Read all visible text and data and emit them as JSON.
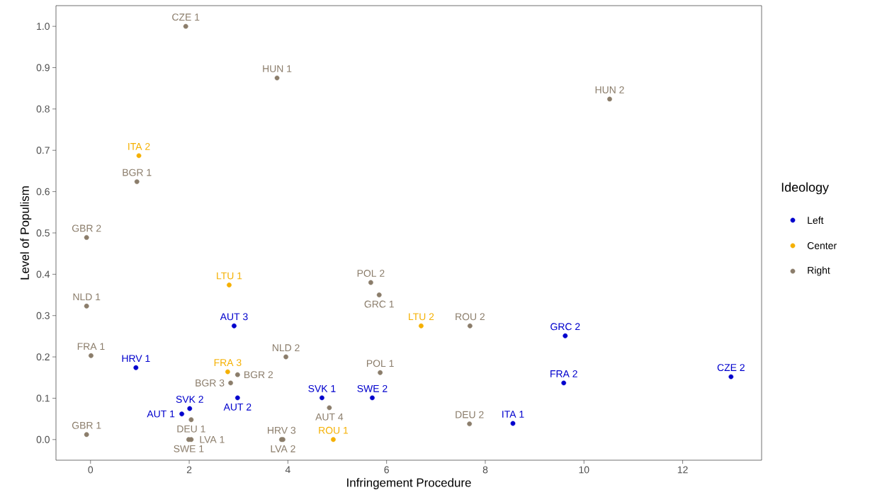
{
  "chart_data": {
    "type": "scatter",
    "xlabel": "Infringement Procedure",
    "ylabel": "Level of Populism",
    "legend_title": "Ideology",
    "legend": "right",
    "marker": "circle",
    "grid": false,
    "xlim": [
      -0.7,
      13.6
    ],
    "ylim": [
      -0.05,
      1.05
    ],
    "xticks": [
      0,
      2,
      4,
      6,
      8,
      10,
      12
    ],
    "yticks": [
      {
        "value": 0,
        "label": "0.0"
      },
      {
        "value": 0.1,
        "label": "0.1"
      },
      {
        "value": 0.2,
        "label": "0.2"
      },
      {
        "value": 0.3,
        "label": "0.3"
      },
      {
        "value": 0.4,
        "label": "0.4"
      },
      {
        "value": 0.5,
        "label": "0.5"
      },
      {
        "value": 0.6,
        "label": "0.6"
      },
      {
        "value": 0.7,
        "label": "0.7"
      },
      {
        "value": 0.8,
        "label": "0.8"
      },
      {
        "value": 0.9,
        "label": "0.9"
      },
      {
        "value": 1.0,
        "label": "1.0"
      }
    ],
    "series": [
      {
        "name": "Left",
        "color": "#0000cd",
        "x": [
          2.91,
          9.62,
          0.92,
          12.98,
          9.59,
          2.98,
          4.69,
          5.71,
          2.01,
          1.85,
          8.56
        ],
        "values": [
          0.275,
          0.251,
          0.174,
          0.152,
          0.137,
          0.101,
          0.101,
          0.101,
          0.075,
          0.062,
          0.039
        ],
        "value_labels": [
          "AUT 3",
          "GRC 2",
          "HRV 1",
          "CZE 2",
          "FRA 2",
          "AUT 2",
          "SVK 1",
          "SWE 2",
          "SVK 2",
          "AUT 1",
          "ITA 1"
        ]
      },
      {
        "name": "Center",
        "color": "#f5b000",
        "x": [
          0.98,
          2.81,
          6.7,
          4.92,
          2.78
        ],
        "values": [
          0.687,
          0.374,
          0.275,
          0.0,
          0.164
        ],
        "value_labels": [
          "ITA 2",
          "LTU 1",
          "LTU 2",
          "ROU 1",
          "FRA 3"
        ]
      },
      {
        "name": "Right",
        "color": "#8b7d6b",
        "x": [
          1.93,
          3.78,
          10.52,
          0.94,
          -0.08,
          5.68,
          5.85,
          -0.08,
          7.69,
          0.01,
          3.96,
          5.87,
          2.98,
          2.84,
          2.04,
          4.84,
          7.68,
          -0.08,
          1.99,
          2.04,
          3.87,
          3.9
        ],
        "values": [
          1.0,
          0.875,
          0.824,
          0.624,
          0.489,
          0.38,
          0.35,
          0.323,
          0.275,
          0.203,
          0.2,
          0.162,
          0.157,
          0.137,
          0.048,
          0.077,
          0.038,
          0.012,
          0.0,
          0.0,
          0.0,
          0.0
        ],
        "value_labels": [
          "CZE 1",
          "HUN 1",
          "HUN 2",
          "BGR 1",
          "GBR 2",
          "POL 2",
          "GRC 1",
          "NLD 1",
          "ROU 2",
          "FRA 1",
          "NLD 2",
          "POL 1",
          "BGR 2",
          "BGR 3",
          "DEU 1",
          "AUT 4",
          "DEU 2",
          "GBR 1",
          "SWE 1",
          "LVA 1",
          "HRV 3",
          "LVA 2"
        ]
      }
    ]
  }
}
